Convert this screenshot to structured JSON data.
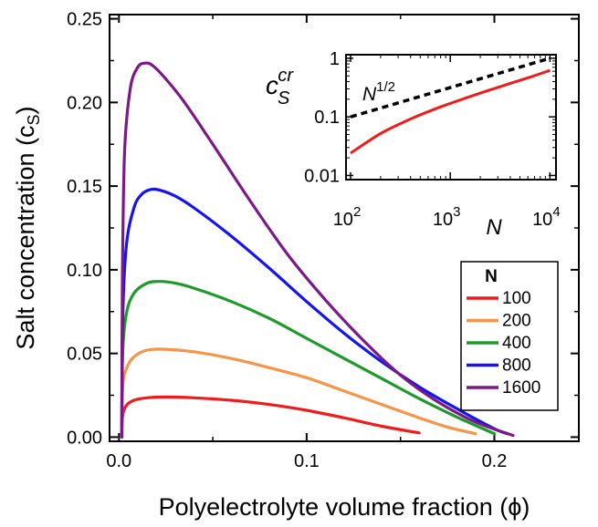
{
  "chart_data": [
    {
      "type": "line",
      "xlabel": "Polyelectrolyte volume fraction (ϕ)",
      "ylabel": "Salt concentration (c",
      "ylabel_sub": "S",
      "ylabel_close": ")",
      "xlim": [
        -0.005,
        0.245
      ],
      "ylim": [
        -0.0025,
        0.2525
      ],
      "x_ticks": [
        0.0,
        0.1,
        0.2
      ],
      "x_tick_labels": [
        "0.0",
        "0.1",
        "0.2"
      ],
      "y_ticks": [
        0.0,
        0.05,
        0.1,
        0.15,
        0.2,
        0.25
      ],
      "y_tick_labels": [
        "0.00",
        "0.05",
        "0.10",
        "0.15",
        "0.20",
        "0.25"
      ],
      "legend": {
        "title": "N",
        "placement": "bottom-right"
      },
      "series": [
        {
          "name": "100",
          "color": "#ee1c1c",
          "x": [
            0.0015,
            0.002,
            0.004,
            0.008,
            0.015,
            0.025,
            0.04,
            0.06,
            0.08,
            0.1,
            0.12,
            0.14,
            0.16
          ],
          "y": [
            0.0,
            0.013,
            0.019,
            0.022,
            0.0235,
            0.024,
            0.0235,
            0.022,
            0.0195,
            0.016,
            0.0115,
            0.0065,
            0.0025
          ]
        },
        {
          "name": "200",
          "color": "#f7944a",
          "x": [
            0.0015,
            0.002,
            0.004,
            0.008,
            0.015,
            0.025,
            0.04,
            0.06,
            0.08,
            0.1,
            0.12,
            0.14,
            0.16,
            0.175,
            0.19
          ],
          "y": [
            0.0,
            0.03,
            0.041,
            0.048,
            0.052,
            0.0525,
            0.051,
            0.047,
            0.0415,
            0.0355,
            0.0275,
            0.0195,
            0.0115,
            0.006,
            0.002
          ]
        },
        {
          "name": "400",
          "color": "#1e9a2a",
          "x": [
            0.0015,
            0.002,
            0.004,
            0.008,
            0.015,
            0.022,
            0.03,
            0.04,
            0.06,
            0.08,
            0.1,
            0.12,
            0.14,
            0.16,
            0.18,
            0.2
          ],
          "y": [
            0.0,
            0.05,
            0.074,
            0.086,
            0.092,
            0.093,
            0.092,
            0.089,
            0.081,
            0.071,
            0.059,
            0.047,
            0.035,
            0.023,
            0.012,
            0.002
          ]
        },
        {
          "name": "800",
          "color": "#1414f0",
          "x": [
            0.0015,
            0.002,
            0.004,
            0.008,
            0.012,
            0.017,
            0.022,
            0.03,
            0.04,
            0.06,
            0.08,
            0.1,
            0.12,
            0.14,
            0.16,
            0.18,
            0.2,
            0.207
          ],
          "y": [
            0.0,
            0.07,
            0.115,
            0.137,
            0.145,
            0.148,
            0.1475,
            0.144,
            0.137,
            0.12,
            0.101,
            0.081,
            0.062,
            0.045,
            0.03,
            0.017,
            0.005,
            0.002
          ]
        },
        {
          "name": "1600",
          "color": "#7b1a86",
          "x": [
            0.0015,
            0.0018,
            0.003,
            0.006,
            0.01,
            0.014,
            0.018,
            0.025,
            0.035,
            0.05,
            0.07,
            0.09,
            0.11,
            0.13,
            0.15,
            0.17,
            0.19,
            0.21
          ],
          "y": [
            0.0,
            0.09,
            0.17,
            0.208,
            0.221,
            0.2235,
            0.222,
            0.214,
            0.2,
            0.175,
            0.141,
            0.109,
            0.082,
            0.058,
            0.037,
            0.021,
            0.009,
            0.001
          ]
        }
      ]
    },
    {
      "type": "line",
      "scale": "log-log",
      "xlabel": "N",
      "ylabel": "c",
      "ylabel_sub": "S",
      "ylabel_sup": "cr",
      "xlim": [
        90,
        11500
      ],
      "ylim": [
        0.0085,
        1.15
      ],
      "x_ticks": [
        100,
        1000,
        10000
      ],
      "x_tick_base": "10",
      "x_tick_exps": [
        "2",
        "3",
        "4"
      ],
      "y_ticks": [
        0.01,
        0.1,
        1
      ],
      "y_tick_labels": [
        "0.01",
        "0.1",
        "1"
      ],
      "annotation": {
        "base": "N",
        "exponent": "1/2"
      },
      "series": [
        {
          "name": "N^1/2",
          "color": "#000000",
          "dashed": true,
          "x": [
            100,
            10000
          ],
          "y": [
            0.1,
            1.0
          ]
        },
        {
          "name": "c_S^cr",
          "color": "#ee1c1c",
          "x": [
            100,
            200,
            400,
            800,
            1600,
            3200,
            6400,
            10000
          ],
          "y": [
            0.024,
            0.052,
            0.092,
            0.148,
            0.224,
            0.33,
            0.48,
            0.62
          ]
        }
      ]
    }
  ]
}
